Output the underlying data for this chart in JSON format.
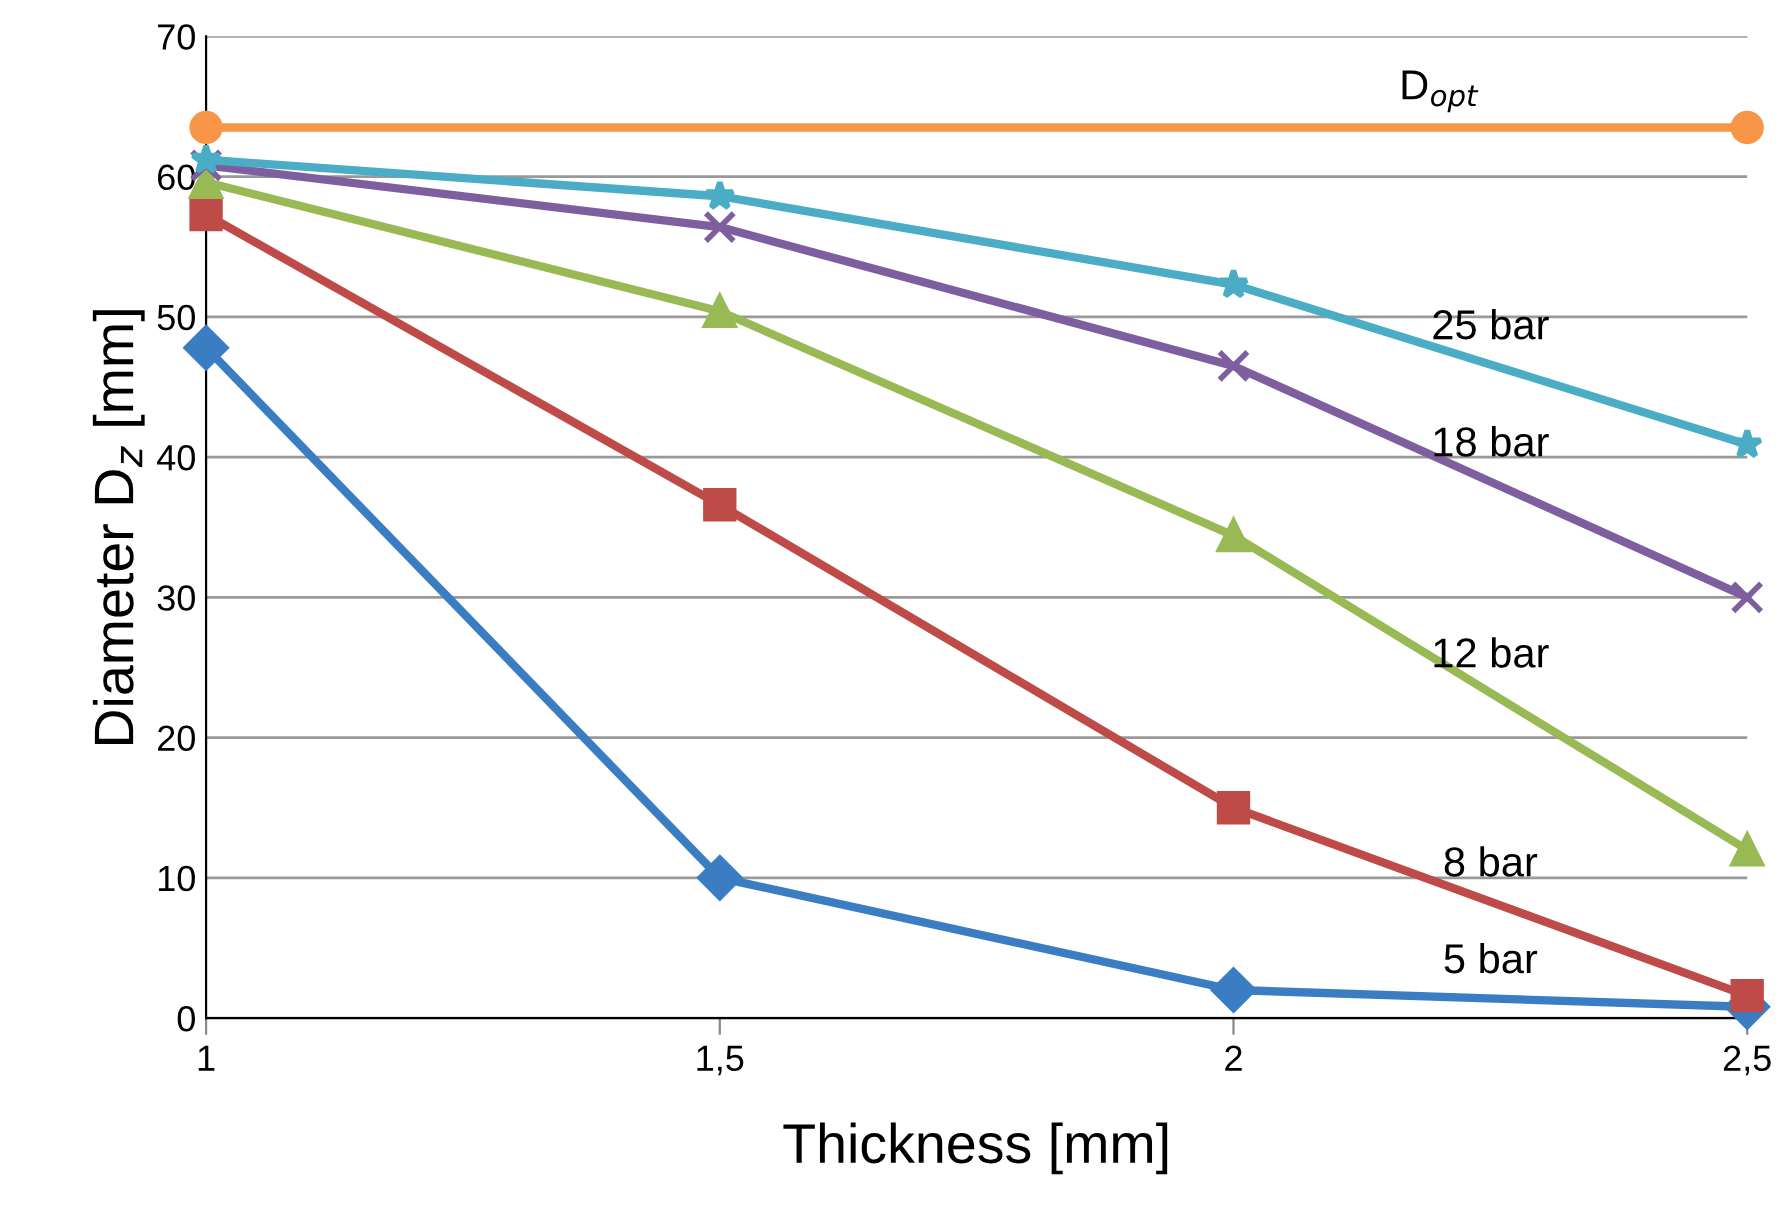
{
  "chart_data": {
    "type": "line",
    "xlabel": "Thickness [mm]",
    "ylabel": "Diameter D$_{z}$ [mm]",
    "x": [
      1,
      1.5,
      2,
      2.5
    ],
    "series": [
      {
        "name": "5 bar",
        "color": "#3a7dc2",
        "marker": "diamond",
        "values": [
          47.8,
          10,
          2,
          0.8
        ]
      },
      {
        "name": "8 bar",
        "color": "#be4b48",
        "marker": "square",
        "values": [
          57.3,
          36.6,
          15,
          1.6
        ]
      },
      {
        "name": "12 bar",
        "color": "#98b954",
        "marker": "triangle",
        "values": [
          59.6,
          50.4,
          34.4,
          12
        ]
      },
      {
        "name": "18 bar",
        "color": "#7d5fa0",
        "marker": "cross",
        "values": [
          60.8,
          56.4,
          46.5,
          30
        ]
      },
      {
        "name": "25 bar",
        "color": "#4bacc6",
        "marker": "star",
        "values": [
          61.2,
          58.6,
          52.3,
          40.9
        ]
      },
      {
        "name": "D$_{opt}$",
        "color": "#f79646",
        "marker": "circle",
        "x": [
          1,
          2.5
        ],
        "values": [
          63.5,
          63.5
        ]
      }
    ],
    "xlim": [
      1,
      2.5
    ],
    "xticks": [
      {
        "value": 1,
        "label": "1"
      },
      {
        "value": 1.5,
        "label": "1,5"
      },
      {
        "value": 2,
        "label": "2"
      },
      {
        "value": 2.5,
        "label": "2,5"
      }
    ],
    "ylim": [
      0,
      70
    ],
    "yticks": [
      0,
      10,
      20,
      30,
      40,
      50,
      60,
      70
    ],
    "grid": "y",
    "legend": false
  }
}
